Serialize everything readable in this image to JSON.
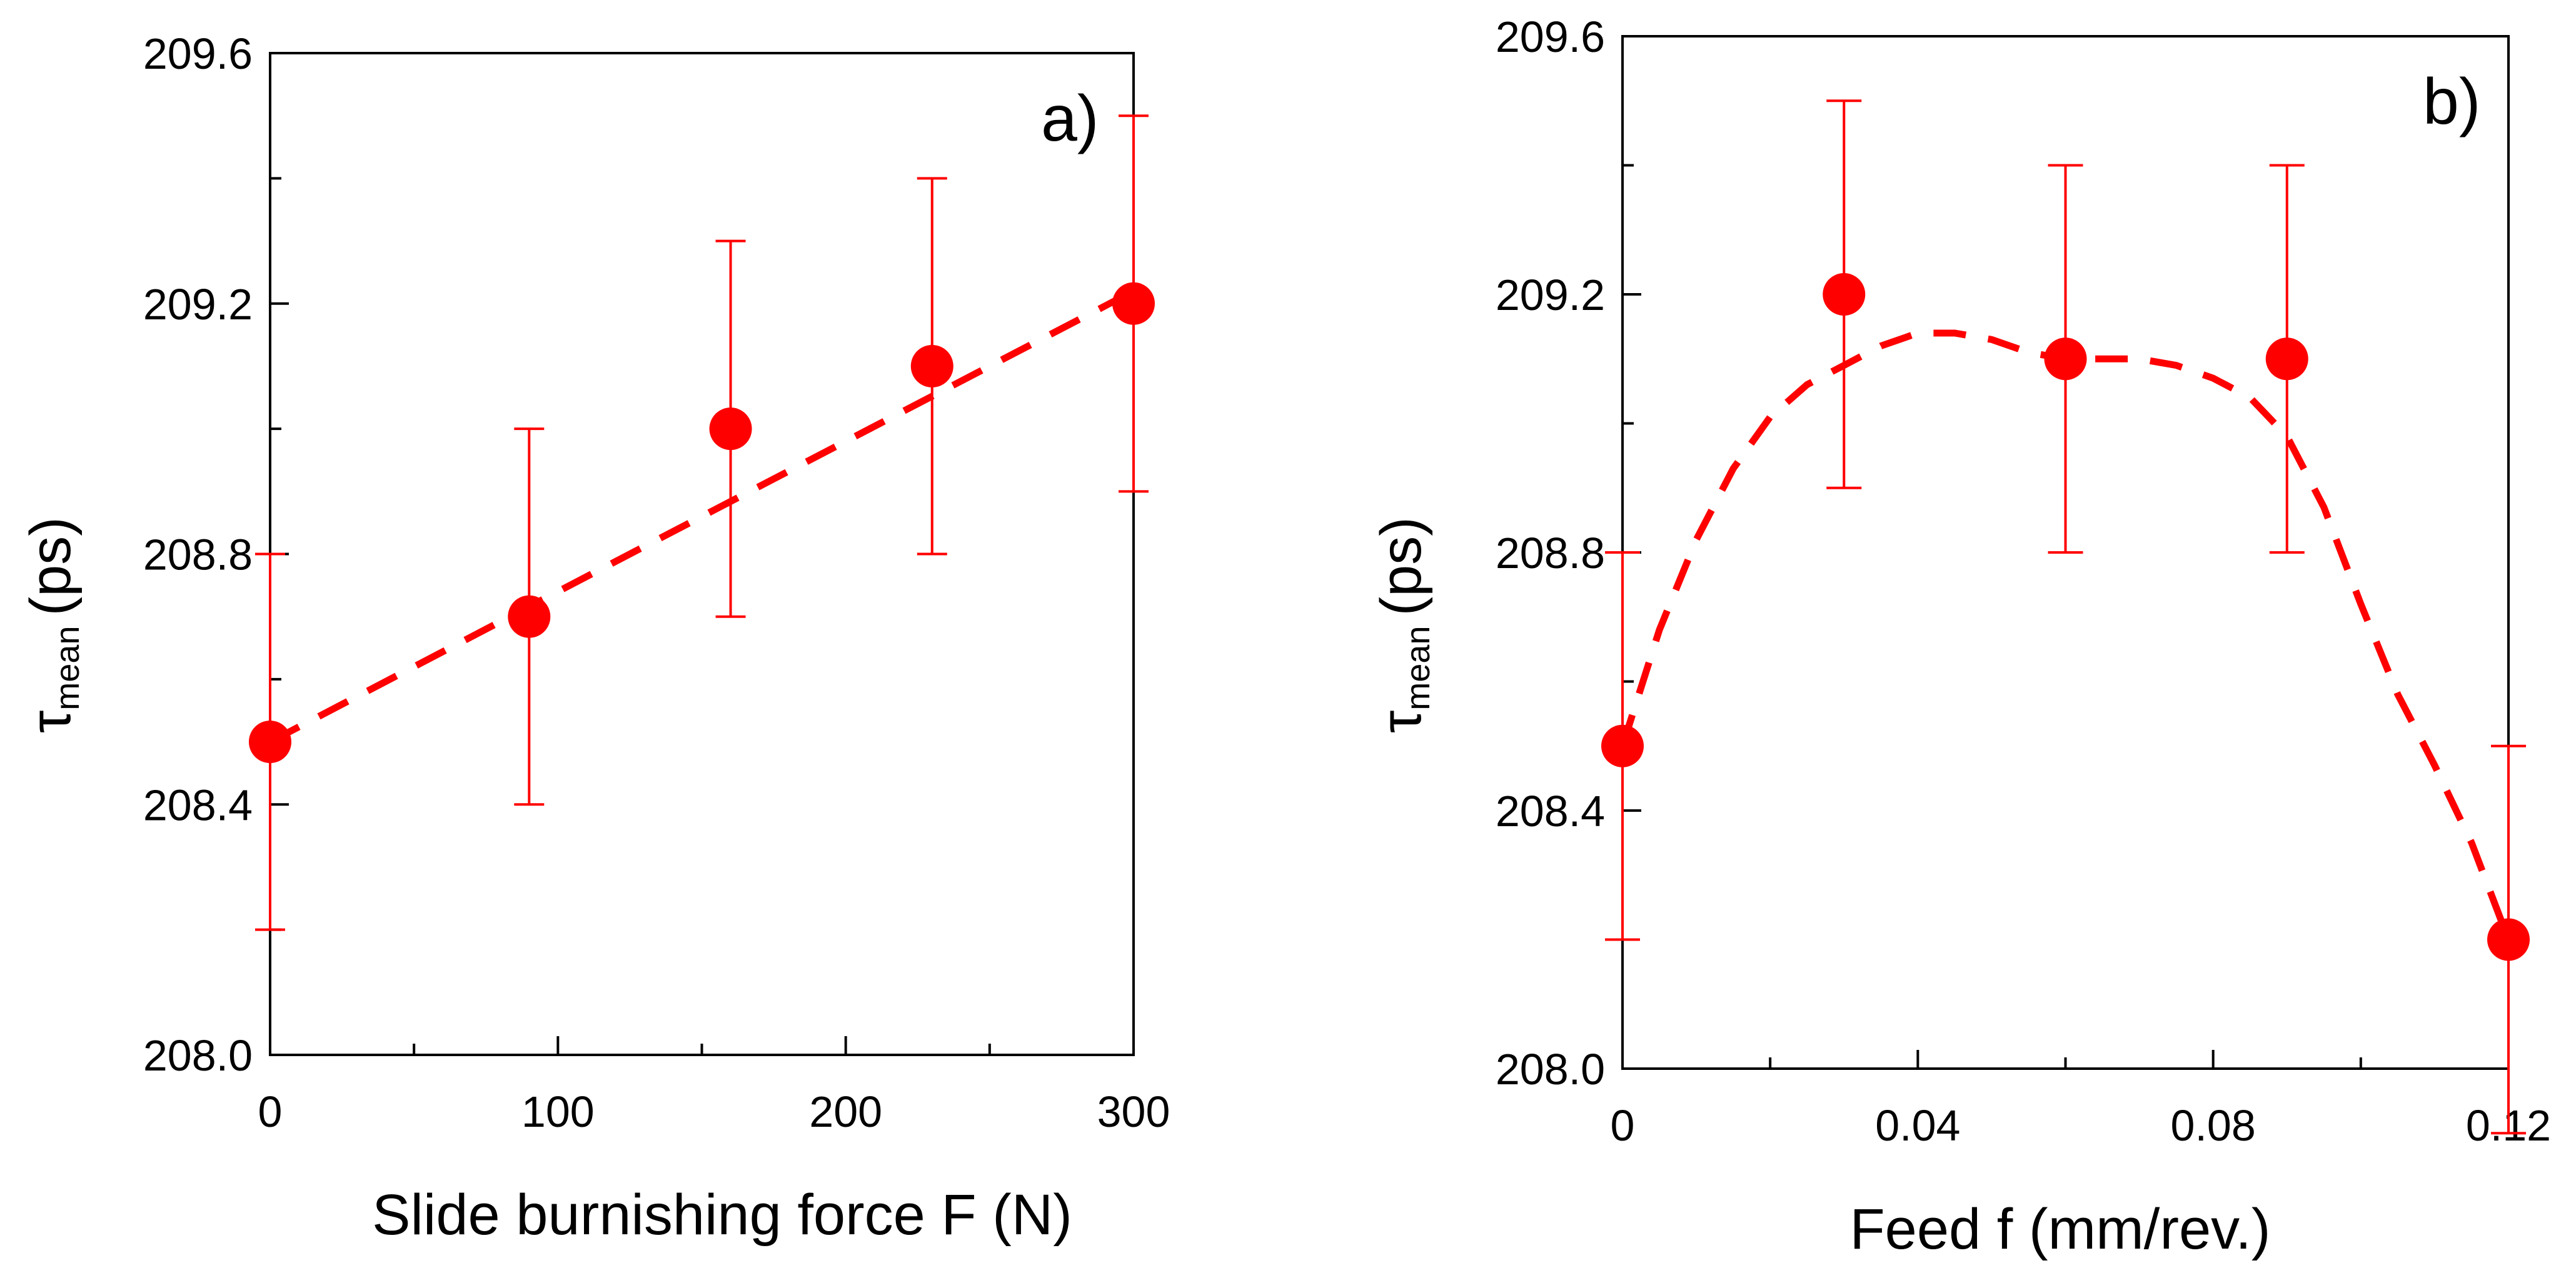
{
  "chart_data": [
    {
      "type": "scatter",
      "panel_label": "a)",
      "xlabel": "Slide burnishing force F (N)",
      "ylabel": {
        "symbol": "τ",
        "subscript": "mean",
        "unit": "(ps)"
      },
      "xlim": [
        0,
        300
      ],
      "ylim": [
        208.0,
        209.6
      ],
      "xticks_major": [
        0,
        100,
        200,
        300
      ],
      "xtick_labels": [
        "0",
        "100",
        "200",
        "300"
      ],
      "xticks_minor": [
        50,
        150,
        250
      ],
      "yticks_major": [
        208.0,
        208.4,
        208.8,
        209.2,
        209.6
      ],
      "ytick_labels": [
        "208.0",
        "208.4",
        "208.8",
        "209.2",
        "209.6"
      ],
      "yticks_minor": [
        208.2,
        208.6,
        209.0,
        209.4
      ],
      "series": [
        {
          "name": "τ mean",
          "x": [
            0,
            90,
            160,
            230,
            300
          ],
          "y": [
            208.5,
            208.7,
            209.0,
            209.1,
            209.2
          ],
          "yerr": [
            0.3,
            0.3,
            0.3,
            0.3,
            0.3
          ],
          "color": "#ff0000"
        }
      ],
      "fit": {
        "style": "dashed",
        "color": "#ff0000",
        "x": [
          0,
          300
        ],
        "y": [
          208.5,
          209.22
        ]
      }
    },
    {
      "type": "scatter",
      "panel_label": "b)",
      "xlabel": "Feed f (mm/rev.)",
      "ylabel": {
        "symbol": "τ",
        "subscript": "mean",
        "unit": "(ps)"
      },
      "xlim": [
        0,
        0.12
      ],
      "ylim": [
        208.0,
        209.6
      ],
      "xticks_major": [
        0,
        0.04,
        0.08,
        0.12
      ],
      "xtick_labels": [
        "0",
        "0.04",
        "0.08",
        "0.12"
      ],
      "xticks_minor": [
        0.02,
        0.06,
        0.1
      ],
      "yticks_major": [
        208.0,
        208.4,
        208.8,
        209.2,
        209.6
      ],
      "ytick_labels": [
        "208.0",
        "208.4",
        "208.8",
        "209.2",
        "209.6"
      ],
      "yticks_minor": [
        208.2,
        208.6,
        209.0,
        209.4
      ],
      "series": [
        {
          "name": "τ mean",
          "x": [
            0,
            0.03,
            0.06,
            0.09,
            0.12
          ],
          "y": [
            208.5,
            209.2,
            209.1,
            209.1,
            208.2
          ],
          "yerr": [
            0.3,
            0.3,
            0.3,
            0.3,
            0.3
          ],
          "color": "#ff0000"
        }
      ],
      "fit": {
        "style": "dashed",
        "color": "#ff0000",
        "x": [
          0,
          0.005,
          0.01,
          0.015,
          0.02,
          0.025,
          0.03,
          0.035,
          0.04,
          0.045,
          0.05,
          0.055,
          0.06,
          0.065,
          0.07,
          0.075,
          0.08,
          0.085,
          0.09,
          0.095,
          0.1,
          0.105,
          0.11,
          0.115,
          0.12
        ],
        "y": [
          208.5,
          208.68,
          208.82,
          208.93,
          209.01,
          209.06,
          209.09,
          209.12,
          209.14,
          209.14,
          209.13,
          209.11,
          209.1,
          209.1,
          209.1,
          209.09,
          209.07,
          209.04,
          208.98,
          208.87,
          208.72,
          208.58,
          208.47,
          208.35,
          208.2
        ]
      }
    }
  ]
}
